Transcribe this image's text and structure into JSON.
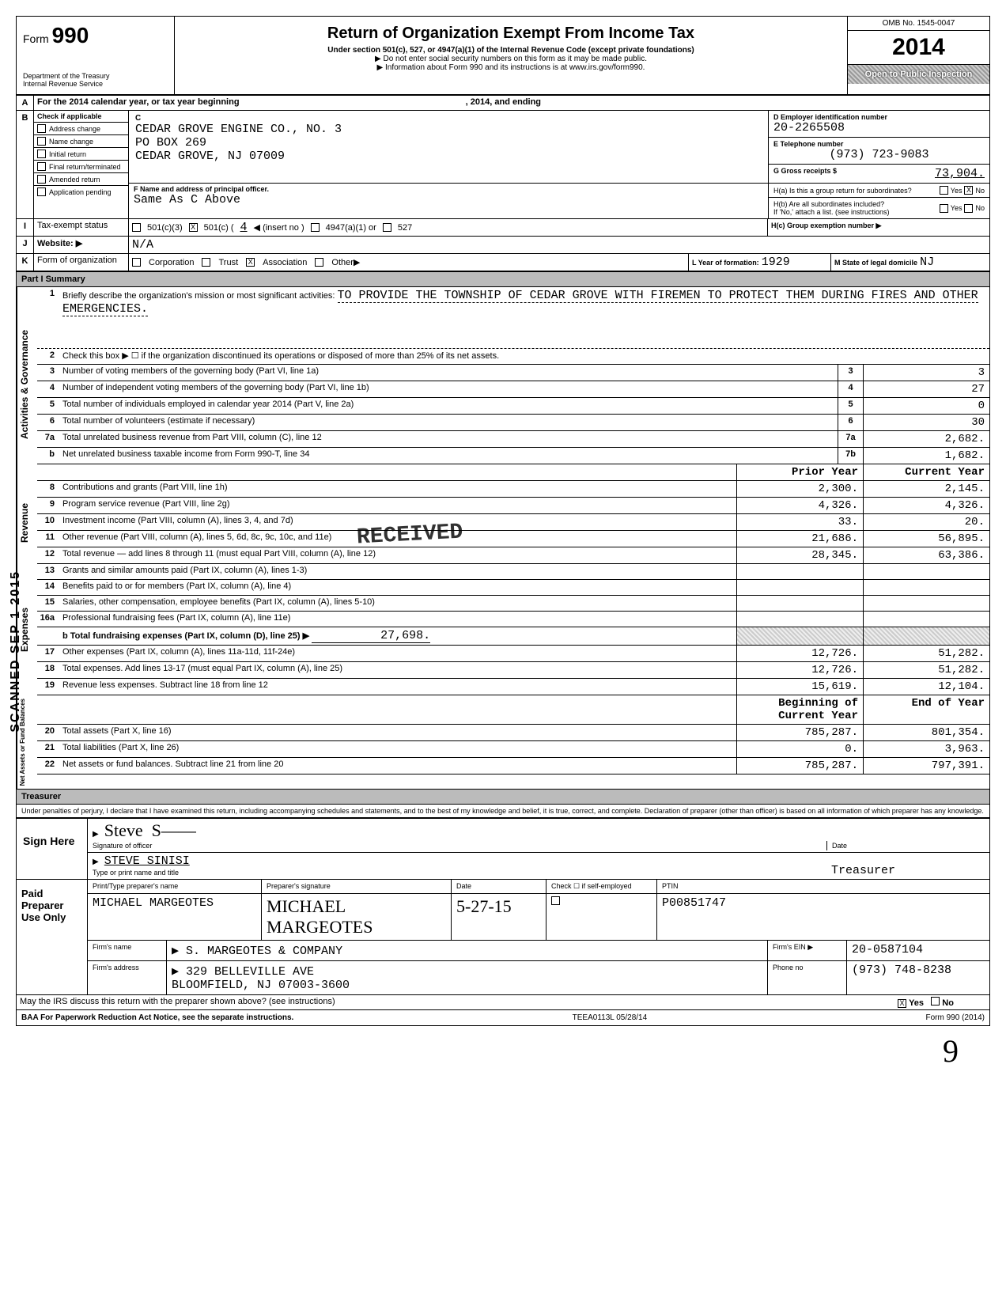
{
  "header": {
    "form_label": "Form",
    "form_number": "990",
    "title": "Return of Organization Exempt From Income Tax",
    "subtitle": "Under section 501(c), 527, or 4947(a)(1) of the Internal Revenue Code (except private foundations)",
    "note1": "▶ Do not enter social security numbers on this form as it may be made public.",
    "note2": "▶ Information about Form 990 and its instructions is at www.irs.gov/form990.",
    "dept": "Department of the Treasury\nInternal Revenue Service",
    "omb": "OMB No. 1545-0047",
    "year": "2014",
    "open_public": "Open to Public Inspection"
  },
  "rowA": {
    "letter": "A",
    "text": "For the 2014 calendar year, or tax year beginning",
    "text2": ", 2014, and ending"
  },
  "rowB": {
    "letter": "B",
    "check_label": "Check if applicable",
    "items": [
      "Address change",
      "Name change",
      "Initial return",
      "Final return/terminated",
      "Amended return",
      "Application pending"
    ]
  },
  "C": {
    "letter": "C",
    "name": "CEDAR GROVE ENGINE CO., NO. 3",
    "addr1": "PO BOX 269",
    "addr2": "CEDAR GROVE, NJ 07009"
  },
  "D": {
    "label": "D  Employer identification number",
    "value": "20-2265508"
  },
  "E": {
    "label": "E  Telephone number",
    "value": "(973) 723-9083"
  },
  "G": {
    "label": "G  Gross receipts $",
    "value": "73,904."
  },
  "F": {
    "label": "F  Name and address of principal officer.",
    "value": "Same As C Above"
  },
  "H": {
    "a": "H(a) Is this a group return for subordinates?",
    "b": "H(b) Are all subordinates included?",
    "b2": "If 'No,' attach a list. (see instructions)",
    "c": "H(c) Group exemption number ▶",
    "a_no_checked": "X"
  },
  "I": {
    "letter": "I",
    "label": "Tax-exempt status",
    "opts": [
      "501(c)(3)",
      "501(c) (",
      "4",
      "◀ (insert no )",
      "4947(a)(1) or",
      "527"
    ],
    "checked": "X"
  },
  "J": {
    "letter": "J",
    "label": "Website: ▶",
    "value": "N/A"
  },
  "K": {
    "letter": "K",
    "label": "Form of organization",
    "opts": [
      "Corporation",
      "Trust",
      "Association",
      "Other▶"
    ],
    "checked": "X",
    "year_label": "L Year of formation:",
    "year": "1929",
    "state_label": "M State of legal domicile",
    "state": "NJ"
  },
  "part1": {
    "title": "Part I   Summary",
    "line1_label": "Briefly describe the organization's mission or most significant activities:",
    "line1_text": "TO PROVIDE THE TOWNSHIP OF CEDAR GROVE WITH FIREMEN TO PROTECT THEM DURING FIRES AND OTHER EMERGENCIES.",
    "line2": "Check this box ▶ ☐ if the organization discontinued its operations or disposed of more than 25% of its net assets.",
    "governance": [
      {
        "n": "3",
        "d": "Number of voting members of the governing body (Part VI, line 1a)",
        "c": "3",
        "v": "3"
      },
      {
        "n": "4",
        "d": "Number of independent voting members of the governing body (Part VI, line 1b)",
        "c": "4",
        "v": "27"
      },
      {
        "n": "5",
        "d": "Total number of individuals employed in calendar year 2014 (Part V, line 2a)",
        "c": "5",
        "v": "0"
      },
      {
        "n": "6",
        "d": "Total number of volunteers (estimate if necessary)",
        "c": "6",
        "v": "30"
      },
      {
        "n": "7a",
        "d": "Total unrelated business revenue from Part VIII, column (C), line 12",
        "c": "7a",
        "v": "2,682."
      },
      {
        "n": "b",
        "d": "Net unrelated business taxable income from Form 990-T, line 34",
        "c": "7b",
        "v": "1,682."
      }
    ],
    "colhdr_prior": "Prior Year",
    "colhdr_current": "Current Year",
    "revenue": [
      {
        "n": "8",
        "d": "Contributions and grants (Part VIII, line 1h)",
        "p": "2,300.",
        "c": "2,145."
      },
      {
        "n": "9",
        "d": "Program service revenue (Part VIII, line 2g)",
        "p": "4,326.",
        "c": "4,326."
      },
      {
        "n": "10",
        "d": "Investment income (Part VIII, column (A), lines 3, 4, and 7d)",
        "p": "33.",
        "c": "20."
      },
      {
        "n": "11",
        "d": "Other revenue (Part VIII, column (A), lines 5, 6d, 8c, 9c, 10c, and 11e)",
        "p": "21,686.",
        "c": "56,895."
      },
      {
        "n": "12",
        "d": "Total revenue — add lines 8 through 11 (must equal Part VIII, column (A), line 12)",
        "p": "28,345.",
        "c": "63,386."
      }
    ],
    "expenses": [
      {
        "n": "13",
        "d": "Grants and similar amounts paid (Part IX, column (A), lines 1-3)",
        "p": "",
        "c": ""
      },
      {
        "n": "14",
        "d": "Benefits paid to or for members (Part IX, column (A), line 4)",
        "p": "",
        "c": ""
      },
      {
        "n": "15",
        "d": "Salaries, other compensation, employee benefits (Part IX, column (A), lines 5-10)",
        "p": "",
        "c": ""
      },
      {
        "n": "16a",
        "d": "Professional fundraising fees (Part IX, column (A), line 11e)",
        "p": "",
        "c": ""
      }
    ],
    "line16b": {
      "d": "b Total fundraising expenses (Part IX, column (D), line 25) ▶",
      "v": "27,698."
    },
    "expenses2": [
      {
        "n": "17",
        "d": "Other expenses (Part IX, column (A), lines 11a-11d, 11f-24e)",
        "p": "12,726.",
        "c": "51,282."
      },
      {
        "n": "18",
        "d": "Total expenses. Add lines 13-17 (must equal Part IX, column (A), line 25)",
        "p": "12,726.",
        "c": "51,282."
      },
      {
        "n": "19",
        "d": "Revenue less expenses. Subtract line 18 from line 12",
        "p": "15,619.",
        "c": "12,104."
      }
    ],
    "colhdr_begin": "Beginning of Current Year",
    "colhdr_end": "End of Year",
    "netassets": [
      {
        "n": "20",
        "d": "Total assets (Part X, line 16)",
        "p": "785,287.",
        "c": "801,354."
      },
      {
        "n": "21",
        "d": "Total liabilities (Part X, line 26)",
        "p": "0.",
        "c": "3,963."
      },
      {
        "n": "22",
        "d": "Net assets or fund balances. Subtract line 21 from line 20",
        "p": "785,287.",
        "c": "797,391."
      }
    ],
    "vlabels": {
      "gov": "Activities & Governance",
      "rev": "Revenue",
      "exp": "Expenses",
      "net": "Net Assets or Fund Balances"
    }
  },
  "part2": {
    "title": "Treasurer",
    "penalty": "Under penalties of perjury, I declare that I have examined this return, including accompanying schedules and statements, and to the best of my knowledge and belief, it is true, correct, and complete. Declaration of preparer (other than officer) is based on all information of which preparer has any knowledge.",
    "sign_label": "Sign Here",
    "sig_officer": "Signature of officer",
    "date": "Date",
    "name": "STEVE SINISI",
    "type_label": "Type or print name and title"
  },
  "preparer": {
    "label": "Paid Preparer Use Only",
    "cols": [
      "Print/Type preparer's name",
      "Preparer's signature",
      "Date",
      "Check ☐ if self-employed",
      "PTIN"
    ],
    "name": "MICHAEL MARGEOTES",
    "sig": "MICHAEL MARGEOTES",
    "date": "5-27-15",
    "ptin": "P00851747",
    "firm_label": "Firm's name",
    "firm": "▶ S. MARGEOTES & COMPANY",
    "addr_label": "Firm's address",
    "addr": "▶ 329 BELLEVILLE AVE",
    "city": "BLOOMFIELD, NJ 07003-3600",
    "ein_label": "Firm's EIN ▶",
    "ein": "20-0587104",
    "phone_label": "Phone no",
    "phone": "(973) 748-8238"
  },
  "bottom": {
    "discuss": "May the IRS discuss this return with the preparer shown above? (see instructions)",
    "yes": "Yes",
    "no": "No",
    "yes_checked": "X",
    "baa": "BAA  For Paperwork Reduction Act Notice, see the separate instructions.",
    "code": "TEEA0113L 05/28/14",
    "form": "Form 990 (2014)"
  },
  "stamps": {
    "received": "RECEIVED",
    "scanned": "SCANNED SEP 1 2015",
    "nine": "9"
  }
}
